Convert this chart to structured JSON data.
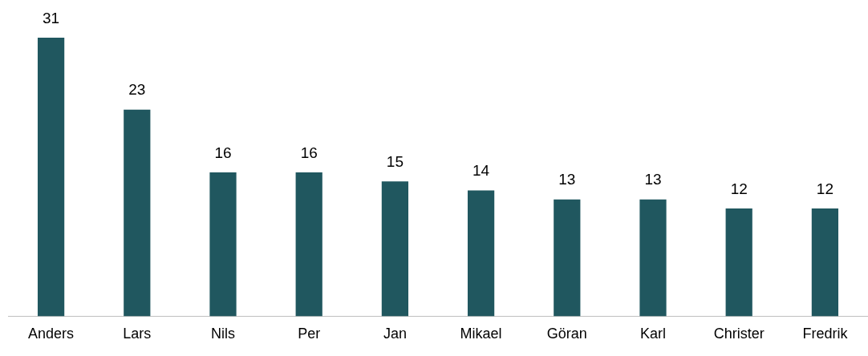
{
  "chart_data": {
    "type": "bar",
    "categories": [
      "Anders",
      "Lars",
      "Nils",
      "Per",
      "Jan",
      "Mikael",
      "Göran",
      "Karl",
      "Christer",
      "Fredrik"
    ],
    "values": [
      31,
      23,
      16,
      16,
      15,
      14,
      13,
      13,
      12,
      12
    ],
    "color": "#20575f",
    "data_labels": true,
    "grid": false,
    "legend": false
  }
}
